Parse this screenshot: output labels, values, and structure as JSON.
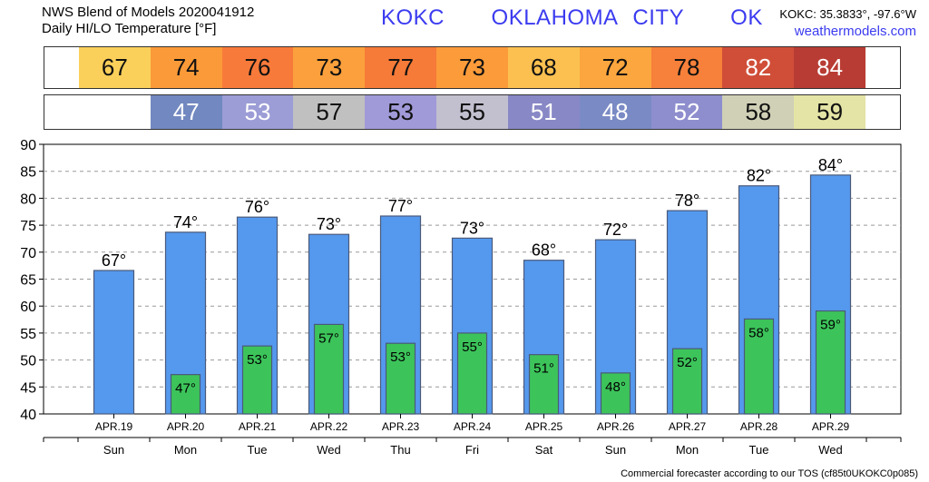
{
  "header": {
    "source_line": "NWS Blend of Models 2020041912",
    "chart_title": "Daily HI/LO Temperature [°F]",
    "station_code": "KOKC",
    "station_city": "OKLAHOMA CITY",
    "station_state": "OK",
    "coords": "KOKC: 35.3833°, -97.6°W",
    "website": "weathermodels.com"
  },
  "footer": {
    "note": "Commercial forecaster according to our TOS (cf85t0UKOKC0p085)"
  },
  "colors": {
    "hi_bar": "#5599ee",
    "lo_bar": "#3cc45a",
    "bar_edge": "#4a5a7a",
    "grid": "#999999"
  },
  "strips": {
    "hi": [
      {
        "value": "67",
        "color": "#fbd05a",
        "text": "dark"
      },
      {
        "value": "74",
        "color": "#fb9a38",
        "text": "dark"
      },
      {
        "value": "76",
        "color": "#f87a3a",
        "text": "dark"
      },
      {
        "value": "73",
        "color": "#fba03c",
        "text": "dark"
      },
      {
        "value": "77",
        "color": "#f67a38",
        "text": "dark"
      },
      {
        "value": "73",
        "color": "#fb9b3a",
        "text": "dark"
      },
      {
        "value": "68",
        "color": "#fbc050",
        "text": "dark"
      },
      {
        "value": "72",
        "color": "#fba63e",
        "text": "dark"
      },
      {
        "value": "78",
        "color": "#f7803a",
        "text": "dark"
      },
      {
        "value": "82",
        "color": "#d04e38",
        "text": "white"
      },
      {
        "value": "84",
        "color": "#b83c34",
        "text": "white"
      }
    ],
    "lo": [
      {
        "value": "",
        "color": "#ffffff",
        "text": "dark"
      },
      {
        "value": "47",
        "color": "#7288c0",
        "text": "white"
      },
      {
        "value": "53",
        "color": "#9c9cd6",
        "text": "white"
      },
      {
        "value": "57",
        "color": "#c0c0c0",
        "text": "dark"
      },
      {
        "value": "53",
        "color": "#a09ad8",
        "text": "dark"
      },
      {
        "value": "55",
        "color": "#c2bfce",
        "text": "dark"
      },
      {
        "value": "51",
        "color": "#8888c6",
        "text": "white"
      },
      {
        "value": "48",
        "color": "#7a8ac4",
        "text": "white"
      },
      {
        "value": "52",
        "color": "#8e8ece",
        "text": "white"
      },
      {
        "value": "58",
        "color": "#d0d0b6",
        "text": "dark"
      },
      {
        "value": "59",
        "color": "#e4e4a6",
        "text": "dark"
      }
    ]
  },
  "chart_data": {
    "type": "bar",
    "categories": [
      "APR.19",
      "APR.20",
      "APR.21",
      "APR.22",
      "APR.23",
      "APR.24",
      "APR.25",
      "APR.26",
      "APR.27",
      "APR.28",
      "APR.29"
    ],
    "weekdays": [
      "Sun",
      "Mon",
      "Tue",
      "Wed",
      "Thu",
      "Fri",
      "Sat",
      "Sun",
      "Mon",
      "Tue",
      "Wed"
    ],
    "series": [
      {
        "values": [
          66.6,
          73.7,
          76.5,
          73.3,
          76.7,
          72.6,
          68.5,
          72.3,
          77.7,
          82.3,
          84.3
        ]
      },
      {
        "values": [
          null,
          47.3,
          52.6,
          56.6,
          53.1,
          55.0,
          51.0,
          47.6,
          52.1,
          57.6,
          59.1
        ]
      }
    ],
    "hi_labels": [
      "67°",
      "74°",
      "76°",
      "73°",
      "77°",
      "73°",
      "68°",
      "72°",
      "78°",
      "82°",
      "84°"
    ],
    "lo_labels": [
      "",
      "47°",
      "53°",
      "57°",
      "53°",
      "55°",
      "51°",
      "48°",
      "52°",
      "58°",
      "59°"
    ],
    "ylim": [
      40,
      90
    ],
    "yticks": [
      "40",
      "45",
      "50",
      "55",
      "60",
      "65",
      "70",
      "75",
      "80",
      "85",
      "90"
    ],
    "grid": true
  }
}
